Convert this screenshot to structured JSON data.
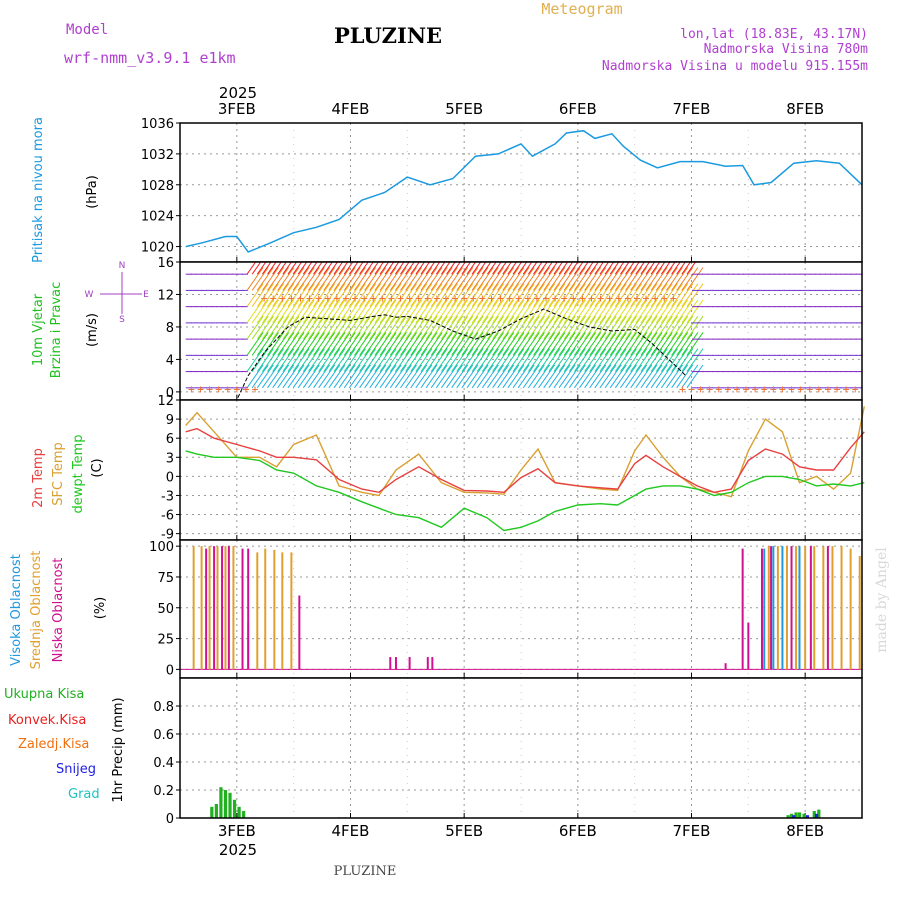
{
  "header": {
    "model_label": "Model",
    "model_value": "wrf-nmm_v3.9.1 e1km",
    "station_title": "PLUZINE",
    "product": "Meteogram",
    "coords": "lon,lat (18.83E, 43.17N)",
    "altitude": "Nadmorska Visina 780m",
    "model_altitude": "Nadmorska Visina u modelu 915.155m",
    "footer_station": "PLUZINE",
    "watermark": "made by Angel"
  },
  "time_axis": {
    "year": "2025",
    "days": [
      "3FEB",
      "4FEB",
      "5FEB",
      "6FEB",
      "7FEB",
      "8FEB"
    ]
  },
  "colors": {
    "pressure": "#1a9ae0",
    "temp2m": "#e84040",
    "sfc_temp": "#d8a030",
    "dewpt": "#20c820",
    "high_cloud": "#2098e0",
    "mid_cloud": "#e0a030",
    "low_cloud": "#d01090",
    "total_precip": "#20b020",
    "conv_precip": "#e82020",
    "frozen_precip": "#f07010",
    "snow": "#2020e0",
    "hail": "#20c0c0",
    "wind_label": "#20c020",
    "compass": "#a040c0"
  },
  "chart_data": [
    {
      "type": "line",
      "panel": "pressure",
      "labels": {
        "name": "Pritisak na nivou mora",
        "unit": "(hPa)"
      },
      "ylim": [
        1018,
        1036
      ],
      "yticks": [
        1020,
        1024,
        1028,
        1032,
        1036
      ],
      "x_days": [
        2.55,
        2.7,
        2.9,
        3.0,
        3.1,
        3.3,
        3.5,
        3.7,
        3.9,
        4.1,
        4.3,
        4.5,
        4.7,
        4.9,
        5.1,
        5.3,
        5.5,
        5.6,
        5.8,
        5.9,
        6.05,
        6.15,
        6.3,
        6.4,
        6.55,
        6.7,
        6.9,
        7.1,
        7.3,
        7.45,
        7.55,
        7.7,
        7.9,
        8.1,
        8.3,
        8.5
      ],
      "series": [
        {
          "values": [
            1020,
            1020.5,
            1021.3,
            1021.3,
            1019.3,
            1020.5,
            1021.8,
            1022.5,
            1023.5,
            1026,
            1027,
            1029,
            1028,
            1028.8,
            1031.7,
            1032,
            1033.3,
            1031.7,
            1033.3,
            1034.7,
            1035,
            1034,
            1034.6,
            1033,
            1031.2,
            1030.2,
            1031,
            1031,
            1030.4,
            1030.5,
            1028,
            1028.3,
            1030.8,
            1031.1,
            1030.8,
            1028
          ]
        }
      ]
    },
    {
      "type": "line",
      "panel": "wind",
      "labels": {
        "name": "10m Vjetar",
        "name2": "Brzina i Pravac",
        "unit": "(m/s)"
      },
      "compass": [
        "N",
        "E",
        "W",
        "S"
      ],
      "ylim": [
        -1,
        16
      ],
      "yticks": [
        0,
        4,
        8,
        12,
        16
      ],
      "x_days": [
        2.6,
        2.8,
        3.0,
        3.1,
        3.25,
        3.45,
        3.6,
        3.8,
        4.0,
        4.2,
        4.3,
        4.4,
        4.5,
        4.7,
        4.9,
        5.1,
        5.3,
        5.5,
        5.7,
        5.9,
        6.1,
        6.3,
        6.5,
        6.65,
        6.8,
        6.95
      ],
      "series": [
        {
          "values": [
            -1,
            -1,
            -1,
            2,
            5,
            8,
            9.2,
            9,
            8.8,
            9.3,
            9.5,
            9.2,
            9.3,
            8.8,
            7.5,
            6.5,
            7.5,
            9,
            10.2,
            9,
            8,
            7.5,
            7.7,
            6,
            4,
            2
          ]
        }
      ]
    },
    {
      "type": "line",
      "panel": "temperature",
      "labels": {
        "t2m": "2m Temp",
        "sfc": "SFC Temp",
        "dew": "dewpt Temp",
        "unit": "(C)"
      },
      "ylim": [
        -10,
        12
      ],
      "yticks": [
        -9,
        -6,
        -3,
        0,
        3,
        6,
        9,
        12
      ],
      "x_days": [
        2.55,
        2.65,
        2.8,
        3.0,
        3.2,
        3.35,
        3.5,
        3.7,
        3.9,
        4.1,
        4.25,
        4.4,
        4.6,
        4.8,
        5.0,
        5.2,
        5.35,
        5.5,
        5.65,
        5.8,
        6.0,
        6.2,
        6.35,
        6.5,
        6.6,
        6.75,
        6.9,
        7.05,
        7.2,
        7.35,
        7.5,
        7.65,
        7.8,
        7.95,
        8.1,
        8.25,
        8.4,
        8.52
      ],
      "series": [
        {
          "name": "2m Temp",
          "values": [
            7,
            7.5,
            6,
            5,
            4,
            3,
            3,
            2.6,
            -0.5,
            -2,
            -2.5,
            -0.5,
            1.5,
            -0.5,
            -2.2,
            -2.3,
            -2.5,
            -0.2,
            1.2,
            -1,
            -1.5,
            -1.8,
            -2,
            2,
            3.3,
            1.5,
            0,
            -1.5,
            -2.5,
            -2,
            2.5,
            4.3,
            3.5,
            1.5,
            1,
            1,
            4.5,
            7
          ]
        },
        {
          "name": "SFC Temp",
          "values": [
            8,
            10,
            7,
            3,
            3,
            1.5,
            5,
            6.5,
            -1.5,
            -2.5,
            -3,
            1,
            3.5,
            -1,
            -2.5,
            -2.6,
            -2.8,
            1,
            4.3,
            -1,
            -1.5,
            -2,
            -2.2,
            4,
            6.5,
            3,
            0,
            -2,
            -2.5,
            -3.2,
            4,
            9,
            7,
            -1,
            0,
            -2,
            0.5,
            11
          ]
        },
        {
          "name": "dewpt Temp",
          "values": [
            4,
            3.5,
            3,
            3,
            2.5,
            1,
            0.5,
            -1.5,
            -2.5,
            -4,
            -5,
            -6,
            -6.5,
            -8,
            -5,
            -6.5,
            -8.5,
            -8,
            -7,
            -5.5,
            -4.5,
            -4.3,
            -4.5,
            -3,
            -2,
            -1.5,
            -1.5,
            -2,
            -3,
            -2.5,
            -1,
            0,
            0,
            -0.5,
            -1.5,
            -1.2,
            -1.5,
            -1
          ]
        }
      ]
    },
    {
      "type": "bar",
      "panel": "clouds",
      "labels": {
        "high": "Visoka Oblacnost",
        "mid": "Srednja Oblacnost",
        "low": "Niska Oblacnost",
        "unit": "(%)"
      },
      "ylim": [
        0,
        100
      ],
      "yticks": [
        0,
        25,
        50,
        75,
        100
      ],
      "series": [
        {
          "name": "Srednja Oblacnost",
          "x": [
            2.62,
            2.69,
            2.76,
            2.83,
            2.9,
            2.97,
            3.1,
            3.18,
            3.25,
            3.33,
            3.4,
            3.48,
            7.68,
            7.76,
            7.84,
            7.92,
            8.0,
            8.08,
            8.16,
            8.24,
            8.32,
            8.4,
            8.48
          ],
          "values": [
            100,
            100,
            100,
            100,
            100,
            100,
            38,
            95,
            98,
            97,
            95,
            95,
            100,
            100,
            100,
            100,
            100,
            100,
            100,
            100,
            100,
            98,
            92
          ]
        },
        {
          "name": "Niska Oblacnost",
          "x": [
            2.73,
            2.8,
            2.87,
            2.93,
            3.05,
            3.1,
            3.55,
            4.35,
            4.4,
            4.52,
            4.68,
            4.72,
            7.3,
            7.45,
            7.5,
            7.62,
            7.7,
            7.88,
            8.05,
            8.2
          ],
          "values": [
            98,
            100,
            100,
            100,
            98,
            98,
            60,
            10,
            10,
            10,
            10,
            10,
            5,
            98,
            38,
            98,
            100,
            100,
            100,
            100
          ]
        },
        {
          "name": "Visoka Oblacnost",
          "x": [
            7.64,
            7.72,
            7.8,
            7.95
          ],
          "values": [
            98,
            100,
            100,
            100
          ]
        }
      ]
    },
    {
      "type": "bar",
      "panel": "precip",
      "labels": {
        "total": "Ukupna Kisa",
        "conv": "Konvek.Kisa",
        "frozen": "Zaledj.Kisa",
        "snow": "Snijeg",
        "hail": "Grad",
        "unit": "1hr Precip (mm)"
      },
      "ylim": [
        0,
        1
      ],
      "yticks": [
        0,
        0.2,
        0.4,
        0.6,
        0.8
      ],
      "series": [
        {
          "name": "Ukupna Kisa",
          "x": [
            2.78,
            2.82,
            2.86,
            2.9,
            2.94,
            2.98,
            3.02,
            3.06,
            3.9,
            3.95,
            7.85,
            7.88,
            7.92,
            7.95,
            7.99,
            8.08,
            8.12
          ],
          "values": [
            0.08,
            0.1,
            0.22,
            0.2,
            0.18,
            0.13,
            0.08,
            0.05,
            0.005,
            0.005,
            0.02,
            0.03,
            0.04,
            0.04,
            0.03,
            0.05,
            0.06
          ]
        },
        {
          "name": "Snijeg",
          "x": [
            7.9,
            8.02,
            8.1
          ],
          "values": [
            0.02,
            0.02,
            0.03
          ]
        }
      ]
    }
  ]
}
